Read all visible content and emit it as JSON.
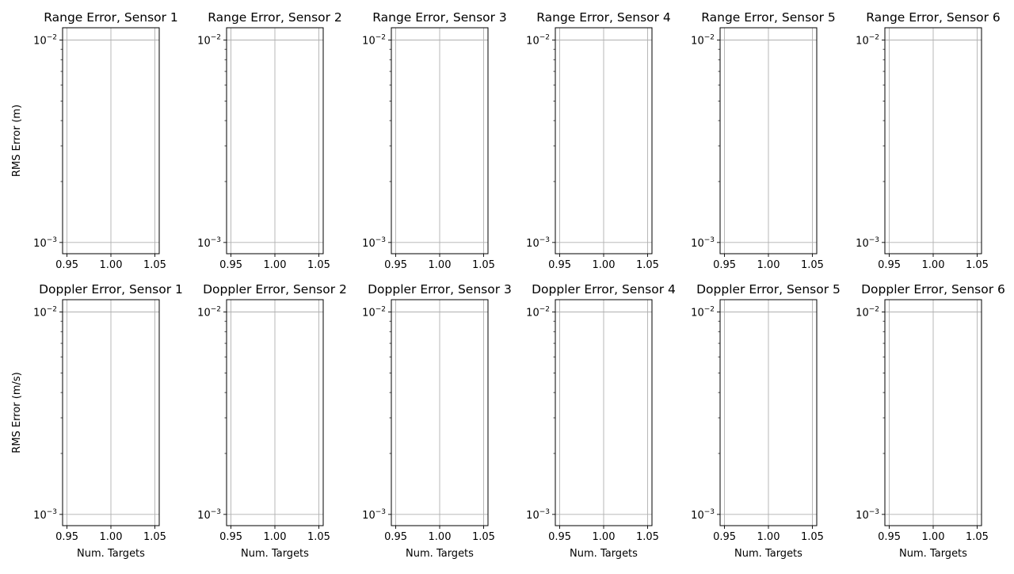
{
  "chart_data": [
    {
      "type": "line",
      "title": "Range Error, Sensor 1",
      "xlabel": "",
      "ylabel": "RMS Error (m)",
      "xlim": [
        0.945,
        1.055
      ],
      "ylim": [
        0.00088,
        0.0115
      ],
      "yscale": "log",
      "grid": true,
      "x_ticks": [
        "0.95",
        "1.00",
        "1.05"
      ],
      "series": []
    },
    {
      "type": "line",
      "title": "Range Error, Sensor 2",
      "xlabel": "",
      "ylabel": "",
      "xlim": [
        0.945,
        1.055
      ],
      "ylim": [
        0.00088,
        0.0115
      ],
      "yscale": "log",
      "grid": true,
      "x_ticks": [
        "0.95",
        "1.00",
        "1.05"
      ],
      "series": []
    },
    {
      "type": "line",
      "title": "Range Error, Sensor 3",
      "xlabel": "",
      "ylabel": "",
      "xlim": [
        0.945,
        1.055
      ],
      "ylim": [
        0.00088,
        0.0115
      ],
      "yscale": "log",
      "grid": true,
      "x_ticks": [
        "0.95",
        "1.00",
        "1.05"
      ],
      "series": []
    },
    {
      "type": "line",
      "title": "Range Error, Sensor 4",
      "xlabel": "",
      "ylabel": "",
      "xlim": [
        0.945,
        1.055
      ],
      "ylim": [
        0.00088,
        0.0115
      ],
      "yscale": "log",
      "grid": true,
      "x_ticks": [
        "0.95",
        "1.00",
        "1.05"
      ],
      "series": []
    },
    {
      "type": "line",
      "title": "Range Error, Sensor 5",
      "xlabel": "",
      "ylabel": "",
      "xlim": [
        0.945,
        1.055
      ],
      "ylim": [
        0.00088,
        0.0115
      ],
      "yscale": "log",
      "grid": true,
      "x_ticks": [
        "0.95",
        "1.00",
        "1.05"
      ],
      "series": []
    },
    {
      "type": "line",
      "title": "Range Error, Sensor 6",
      "xlabel": "",
      "ylabel": "",
      "xlim": [
        0.945,
        1.055
      ],
      "ylim": [
        0.00088,
        0.0115
      ],
      "yscale": "log",
      "grid": true,
      "x_ticks": [
        "0.95",
        "1.00",
        "1.05"
      ],
      "series": []
    },
    {
      "type": "line",
      "title": "Doppler Error, Sensor 1",
      "xlabel": "Num. Targets",
      "ylabel": "RMS Error (m/s)",
      "xlim": [
        0.945,
        1.055
      ],
      "ylim": [
        0.00088,
        0.0115
      ],
      "yscale": "log",
      "grid": true,
      "x_ticks": [
        "0.95",
        "1.00",
        "1.05"
      ],
      "series": []
    },
    {
      "type": "line",
      "title": "Doppler Error, Sensor 2",
      "xlabel": "Num. Targets",
      "ylabel": "",
      "xlim": [
        0.945,
        1.055
      ],
      "ylim": [
        0.00088,
        0.0115
      ],
      "yscale": "log",
      "grid": true,
      "x_ticks": [
        "0.95",
        "1.00",
        "1.05"
      ],
      "series": []
    },
    {
      "type": "line",
      "title": "Doppler Error, Sensor 3",
      "xlabel": "Num. Targets",
      "ylabel": "",
      "xlim": [
        0.945,
        1.055
      ],
      "ylim": [
        0.00088,
        0.0115
      ],
      "yscale": "log",
      "grid": true,
      "x_ticks": [
        "0.95",
        "1.00",
        "1.05"
      ],
      "series": []
    },
    {
      "type": "line",
      "title": "Doppler Error, Sensor 4",
      "xlabel": "Num. Targets",
      "ylabel": "",
      "xlim": [
        0.945,
        1.055
      ],
      "ylim": [
        0.00088,
        0.0115
      ],
      "yscale": "log",
      "grid": true,
      "x_ticks": [
        "0.95",
        "1.00",
        "1.05"
      ],
      "series": []
    },
    {
      "type": "line",
      "title": "Doppler Error, Sensor 5",
      "xlabel": "Num. Targets",
      "ylabel": "",
      "xlim": [
        0.945,
        1.055
      ],
      "ylim": [
        0.00088,
        0.0115
      ],
      "yscale": "log",
      "grid": true,
      "x_ticks": [
        "0.95",
        "1.00",
        "1.05"
      ],
      "series": []
    },
    {
      "type": "line",
      "title": "Doppler Error, Sensor 6",
      "xlabel": "Num. Targets",
      "ylabel": "",
      "xlim": [
        0.945,
        1.055
      ],
      "ylim": [
        0.00088,
        0.0115
      ],
      "yscale": "log",
      "grid": true,
      "x_ticks": [
        "0.95",
        "1.00",
        "1.05"
      ],
      "series": []
    }
  ],
  "colors": {
    "axes": "#000000",
    "grid": "#b0b0b0",
    "background": "#ffffff"
  }
}
